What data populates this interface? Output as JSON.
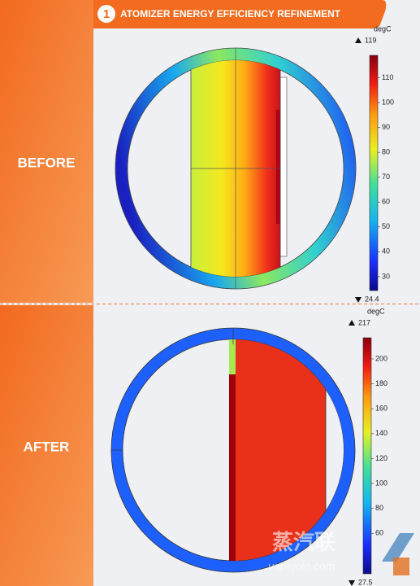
{
  "header": {
    "number": "1",
    "title": "ATOMIZER ENERGY EFFICIENCY REFINEMENT"
  },
  "panels": [
    {
      "label": "BEFORE",
      "unit": "degC",
      "max": 119,
      "min": 24.4,
      "ticks": [
        30,
        40,
        50,
        60,
        70,
        80,
        90,
        100,
        110
      ]
    },
    {
      "label": "AFTER",
      "unit": "degC",
      "max": 217,
      "min": 27.5,
      "ticks": [
        60,
        80,
        100,
        120,
        140,
        160,
        180,
        200
      ]
    }
  ],
  "watermark": {
    "brand": "蒸汽联",
    "site": "vapejoin.com"
  }
}
